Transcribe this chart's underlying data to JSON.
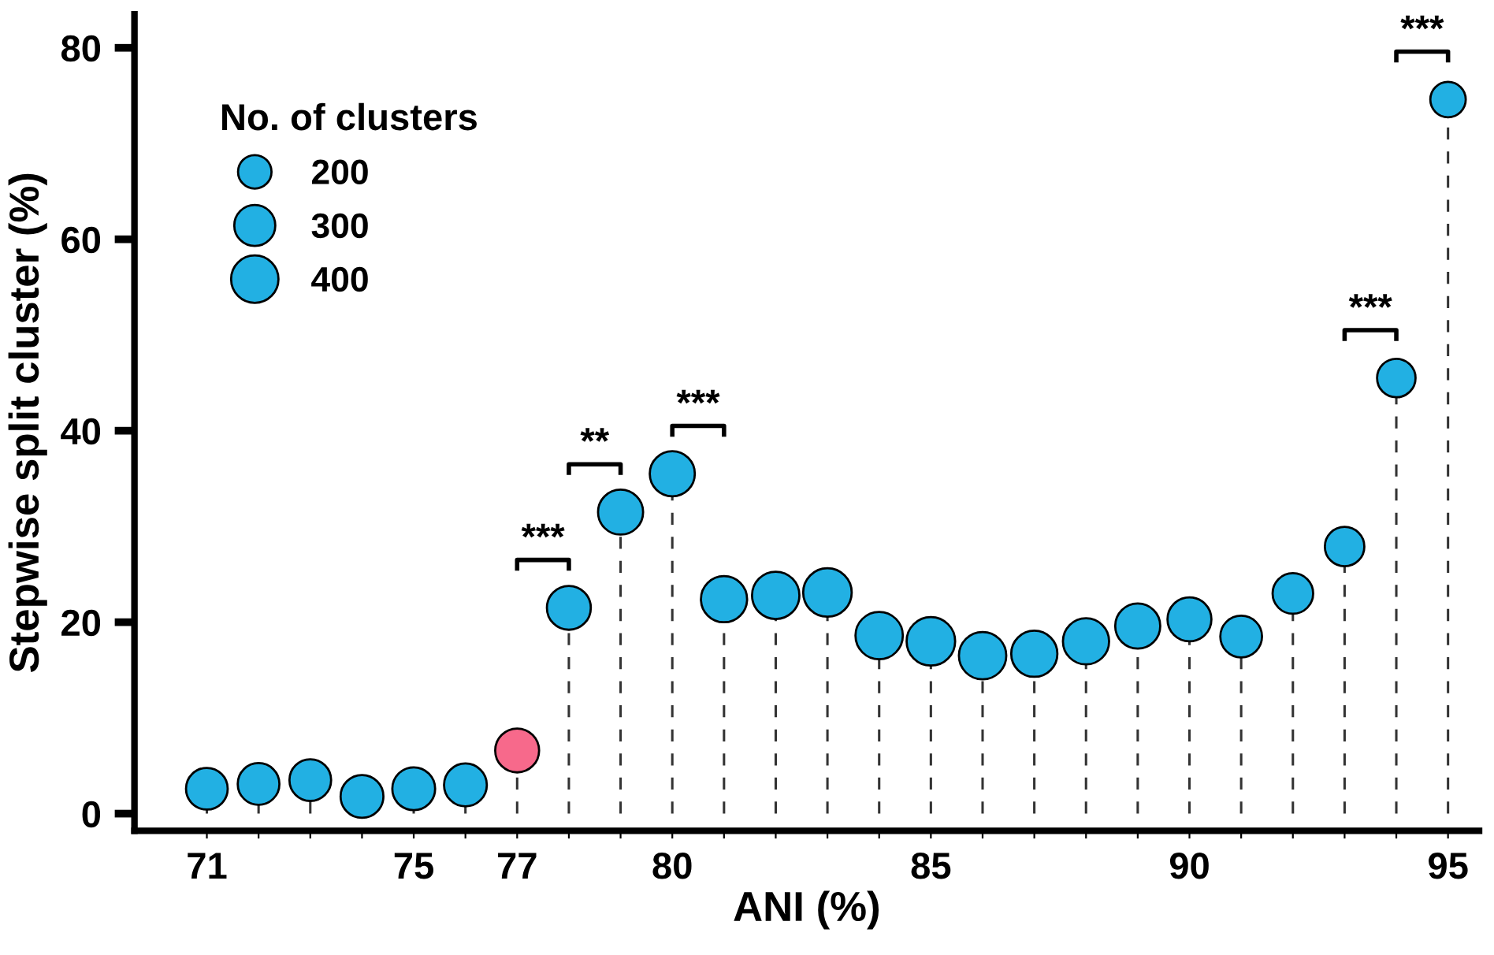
{
  "chart_data": {
    "type": "lollipop",
    "xlabel": "ANI (%)",
    "ylabel": "Stepwise split cluster (%)",
    "x": [
      71,
      72,
      73,
      74,
      75,
      76,
      77,
      78,
      79,
      80,
      81,
      82,
      83,
      84,
      85,
      86,
      87,
      88,
      89,
      90,
      91,
      92,
      93,
      94,
      95
    ],
    "values": [
      2.6,
      3.1,
      3.5,
      1.8,
      2.6,
      3.0,
      6.6,
      21.5,
      31.5,
      35.5,
      22.4,
      22.8,
      23.1,
      18.6,
      18.0,
      16.5,
      16.7,
      18.0,
      19.6,
      20.3,
      18.5,
      23.0,
      27.9,
      45.5,
      74.6
    ],
    "sizes": [
      310,
      310,
      310,
      327,
      327,
      327,
      344,
      344,
      362,
      362,
      380,
      400,
      420,
      400,
      420,
      400,
      380,
      380,
      362,
      344,
      310,
      294,
      278,
      264,
      224
    ],
    "colors": [
      "#22b0e3",
      "#22b0e3",
      "#22b0e3",
      "#22b0e3",
      "#22b0e3",
      "#22b0e3",
      "#f7698b",
      "#22b0e3",
      "#22b0e3",
      "#22b0e3",
      "#22b0e3",
      "#22b0e3",
      "#22b0e3",
      "#22b0e3",
      "#22b0e3",
      "#22b0e3",
      "#22b0e3",
      "#22b0e3",
      "#22b0e3",
      "#22b0e3",
      "#22b0e3",
      "#22b0e3",
      "#22b0e3",
      "#22b0e3",
      "#22b0e3"
    ],
    "size_legend": [
      200,
      300,
      400
    ],
    "legend_title": "No. of clusters",
    "line_style": "dashed",
    "marker": "circle",
    "xlim": [
      69.6,
      95.6
    ],
    "ylim": [
      -1.8,
      83.5
    ],
    "xticks": [
      71,
      {
        "value": 72,
        "label": null
      },
      {
        "value": 73,
        "label": null
      },
      {
        "value": 74,
        "label": null
      },
      75,
      {
        "value": 76,
        "label": null
      },
      77,
      {
        "value": 78,
        "label": null
      },
      {
        "value": 79,
        "label": null
      },
      80,
      {
        "value": 81,
        "label": null
      },
      {
        "value": 82,
        "label": null
      },
      {
        "value": 83,
        "label": null
      },
      {
        "value": 84,
        "label": null
      },
      85,
      {
        "value": 86,
        "label": null
      },
      {
        "value": 87,
        "label": null
      },
      {
        "value": 88,
        "label": null
      },
      {
        "value": 89,
        "label": null
      },
      90,
      {
        "value": 91,
        "label": null
      },
      {
        "value": 92,
        "label": null
      },
      {
        "value": 93,
        "label": null
      },
      {
        "value": 94,
        "label": null
      },
      95
    ],
    "yticks": [
      0,
      20,
      40,
      60,
      80
    ],
    "annotations": [
      {
        "text": "***",
        "x": 78,
        "y": 21.5
      },
      {
        "text": "**",
        "x": 79,
        "y": 31.5
      },
      {
        "text": "***",
        "x": 80,
        "y": 35.5
      },
      {
        "text": "***",
        "x": 94,
        "y": 45.5
      },
      {
        "text": "***",
        "x": 95,
        "y": 74.6
      }
    ]
  }
}
